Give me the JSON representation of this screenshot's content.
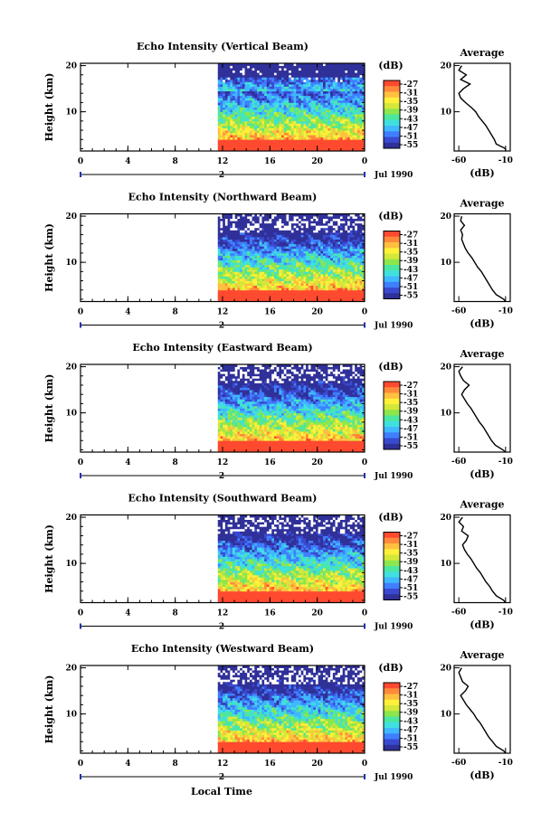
{
  "figure": {
    "xlabel": "Local Time",
    "date_label": "Jul 1990",
    "day_marker": "2"
  },
  "colors": {
    "scale": [
      "#303099",
      "#3a4ad0",
      "#3f7fff",
      "#3fb8ff",
      "#40e0e0",
      "#4de6a0",
      "#8ce64d",
      "#d4e83a",
      "#fff03a",
      "#ffc040",
      "#ff8a3a",
      "#ff4a30"
    ],
    "background": "#ffffff"
  },
  "colorbar": {
    "unit": "(dB)",
    "ticks": [
      "-27",
      "-31",
      "-35",
      "-39",
      "-43",
      "-47",
      "-51",
      "-55"
    ]
  },
  "chart_data": [
    {
      "type": "heatmap",
      "title": "Echo Intensity (Vertical Beam)",
      "ylabel": "Height (km)",
      "x_ticks": [
        "0",
        "4",
        "8",
        "12",
        "16",
        "20",
        "0"
      ],
      "y_ticks": [
        "20",
        "10"
      ],
      "xlim": [
        0,
        24
      ],
      "ylim": [
        1.5,
        20.5
      ],
      "data_start_hour": 11.6,
      "profile": {
        "title": "Average",
        "xlabel": "(dB)",
        "x_ticks": [
          "-60",
          "-10"
        ],
        "y_ticks": [
          "20",
          "10"
        ],
        "xlim": [
          -65,
          -5
        ],
        "height": [
          1.5,
          2,
          3,
          4,
          5,
          6,
          7,
          8,
          9,
          10,
          11,
          12,
          13,
          14,
          15,
          16,
          17,
          18,
          19,
          20
        ],
        "values": [
          -10,
          -10,
          -20,
          -22,
          -25,
          -28,
          -31,
          -35,
          -39,
          -42,
          -47,
          -53,
          -58,
          -60,
          -55,
          -48,
          -58,
          -52,
          -60,
          -57
        ]
      }
    },
    {
      "type": "heatmap",
      "title": "Echo Intensity (Northward Beam)",
      "ylabel": "Height (km)",
      "x_ticks": [
        "0",
        "4",
        "8",
        "12",
        "16",
        "20",
        "0"
      ],
      "y_ticks": [
        "20",
        "10"
      ],
      "xlim": [
        0,
        24
      ],
      "ylim": [
        1.5,
        20.5
      ],
      "data_start_hour": 11.6,
      "profile": {
        "title": "Average",
        "xlabel": "(dB)",
        "x_ticks": [
          "-60",
          "-10"
        ],
        "y_ticks": [
          "20",
          "10"
        ],
        "xlim": [
          -65,
          -5
        ],
        "height": [
          1.5,
          2,
          3,
          4,
          5,
          6,
          7,
          8,
          9,
          10,
          11,
          12,
          13,
          14,
          15,
          16,
          17,
          18,
          19,
          20
        ],
        "values": [
          -10,
          -12,
          -20,
          -24,
          -27,
          -30,
          -33,
          -36,
          -40,
          -43,
          -46,
          -50,
          -53,
          -55,
          -57,
          -56,
          -58,
          -54,
          -58,
          -57
        ]
      }
    },
    {
      "type": "heatmap",
      "title": "Echo Intensity (Eastward Beam)",
      "ylabel": "Height (km)",
      "x_ticks": [
        "0",
        "4",
        "8",
        "12",
        "16",
        "20",
        "0"
      ],
      "y_ticks": [
        "20",
        "10"
      ],
      "xlim": [
        0,
        24
      ],
      "ylim": [
        1.5,
        20.5
      ],
      "data_start_hour": 11.6,
      "profile": {
        "title": "Average",
        "xlabel": "(dB)",
        "x_ticks": [
          "-60",
          "-10"
        ],
        "y_ticks": [
          "20",
          "10"
        ],
        "xlim": [
          -65,
          -5
        ],
        "height": [
          1.5,
          2,
          3,
          4,
          5,
          6,
          7,
          8,
          9,
          10,
          11,
          12,
          13,
          14,
          15,
          16,
          17,
          18,
          19,
          20
        ],
        "values": [
          -10,
          -13,
          -21,
          -25,
          -28,
          -31,
          -34,
          -38,
          -41,
          -44,
          -47,
          -51,
          -54,
          -57,
          -54,
          -49,
          -55,
          -58,
          -60,
          -56
        ]
      }
    },
    {
      "type": "heatmap",
      "title": "Echo Intensity (Southward Beam)",
      "ylabel": "Height (km)",
      "x_ticks": [
        "0",
        "4",
        "8",
        "12",
        "16",
        "20",
        "0"
      ],
      "y_ticks": [
        "20",
        "10"
      ],
      "xlim": [
        0,
        24
      ],
      "ylim": [
        1.5,
        20.5
      ],
      "data_start_hour": 11.6,
      "profile": {
        "title": "Average",
        "xlabel": "(dB)",
        "x_ticks": [
          "-60",
          "-10"
        ],
        "y_ticks": [
          "20",
          "10"
        ],
        "xlim": [
          -65,
          -5
        ],
        "height": [
          1.5,
          2,
          3,
          4,
          5,
          6,
          7,
          8,
          9,
          10,
          11,
          12,
          13,
          14,
          15,
          16,
          17,
          18,
          19,
          20
        ],
        "values": [
          -10,
          -12,
          -20,
          -24,
          -27,
          -31,
          -34,
          -37,
          -41,
          -44,
          -47,
          -51,
          -54,
          -56,
          -52,
          -50,
          -57,
          -55,
          -60,
          -56
        ]
      }
    },
    {
      "type": "heatmap",
      "title": "Echo Intensity (Westward Beam)",
      "ylabel": "Height (km)",
      "x_ticks": [
        "0",
        "4",
        "8",
        "12",
        "16",
        "20",
        "0"
      ],
      "y_ticks": [
        "20",
        "10"
      ],
      "xlim": [
        0,
        24
      ],
      "ylim": [
        1.5,
        20.5
      ],
      "data_start_hour": 11.6,
      "profile": {
        "title": "Average",
        "xlabel": "(dB)",
        "x_ticks": [
          "-60",
          "-10"
        ],
        "y_ticks": [
          "20",
          "10"
        ],
        "xlim": [
          -65,
          -5
        ],
        "height": [
          1.5,
          2,
          3,
          4,
          5,
          6,
          7,
          8,
          9,
          10,
          11,
          12,
          13,
          14,
          15,
          16,
          17,
          18,
          19,
          20
        ],
        "values": [
          -10,
          -12,
          -20,
          -24,
          -28,
          -31,
          -34,
          -37,
          -41,
          -44,
          -48,
          -52,
          -55,
          -58,
          -53,
          -50,
          -56,
          -58,
          -60,
          -57
        ]
      }
    }
  ]
}
